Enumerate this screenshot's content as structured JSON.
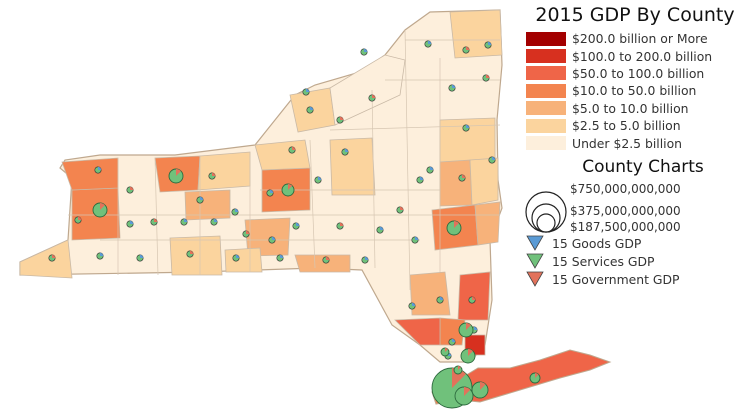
{
  "map": {
    "title": "2015 GDP By County",
    "fill_classes": [
      {
        "label": "$200.0 billion or More",
        "color": "#a30000"
      },
      {
        "label": "$100.0 to 200.0 billion",
        "color": "#d7301f"
      },
      {
        "label": "$50.0 to 100.0 billion",
        "color": "#ef6548"
      },
      {
        "label": "$10.0 to 50.0 billion",
        "color": "#f3844f"
      },
      {
        "label": "$5.0 to 10.0 billion",
        "color": "#f7b27a"
      },
      {
        "label": "$2.5 to 5.0 billion",
        "color": "#fbd49e"
      },
      {
        "label": "Under $2.5 billion",
        "color": "#fdefdc"
      }
    ],
    "charts_title": "County Charts",
    "size_legend": [
      "$750,000,000,000",
      "$375,000,000,000",
      "$187,500,000,000"
    ],
    "pie_legend": [
      {
        "label": "15 Goods GDP",
        "color": "#5b9bd5"
      },
      {
        "label": "15 Services GDP",
        "color": "#70c17b"
      },
      {
        "label": "15 Government GDP",
        "color": "#e2725b"
      }
    ],
    "outline_color": "#c9b9a6",
    "background": "#ffffff"
  }
}
